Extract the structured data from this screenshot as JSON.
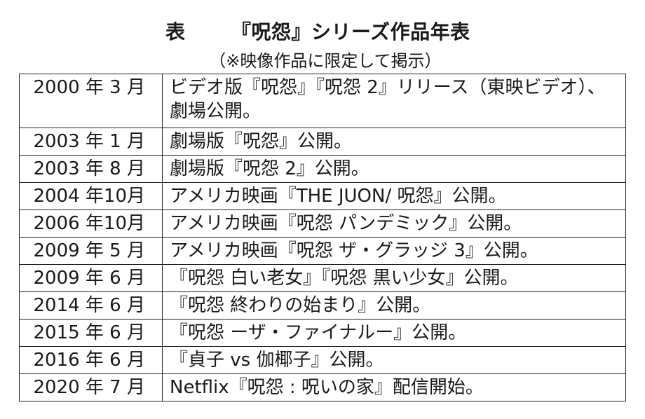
{
  "header": {
    "label": "表",
    "title": "『呪怨』シリーズ作品年表",
    "subtitle": "（※映像作品に限定して掲示）"
  },
  "rows": [
    {
      "date": "2000 年 3 月",
      "event": "ビデオ版『呪怨』『呪怨 2』リリース（東映ビデオ）、劇場公開。"
    },
    {
      "date": "2003 年 1 月",
      "event": "劇場版『呪怨』公開。"
    },
    {
      "date": "2003 年 8 月",
      "event": "劇場版『呪怨 2』公開。"
    },
    {
      "date": "2004 年10月",
      "event": "アメリカ映画『THE JUON/ 呪怨』公開。"
    },
    {
      "date": "2006 年10月",
      "event": "アメリカ映画『呪怨 パンデミック』公開。"
    },
    {
      "date": "2009 年 5 月",
      "event": "アメリカ映画『呪怨 ザ・グラッジ 3』公開。"
    },
    {
      "date": "2009 年 6 月",
      "event": "『呪怨 白い老女』『呪怨 黒い少女』公開。"
    },
    {
      "date": "2014 年 6 月",
      "event": "『呪怨 終わりの始まり』公開。"
    },
    {
      "date": "2015 年 6 月",
      "event": "『呪怨 ーザ・ファイナルー』公開。"
    },
    {
      "date": "2016 年 6 月",
      "event": "『貞子 vs 伽椰子』公開。"
    },
    {
      "date": "2020 年 7 月",
      "event": "Netflix『呪怨 : 呪いの家』配信開始。"
    }
  ]
}
